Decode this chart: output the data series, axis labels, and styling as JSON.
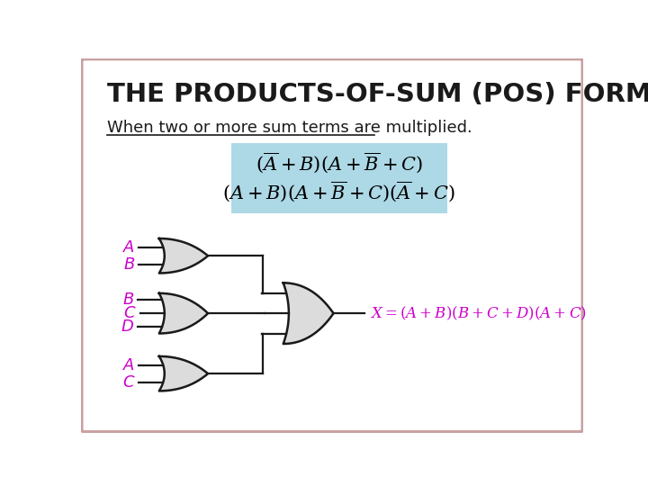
{
  "title": "THE PRODUCTS-OF-SUM (POS) FORM",
  "subtitle": "When two or more sum terms are multiplied.",
  "bg_color": "#ffffff",
  "border_color": "#c9a0a0",
  "title_color": "#1a1a1a",
  "subtitle_color": "#1a1a1a",
  "formula_bg": "#add8e6",
  "gate_fill": "#dcdcdc",
  "gate_edge": "#1a1a1a",
  "label_color": "#cc00cc",
  "wire_color": "#1a1a1a"
}
